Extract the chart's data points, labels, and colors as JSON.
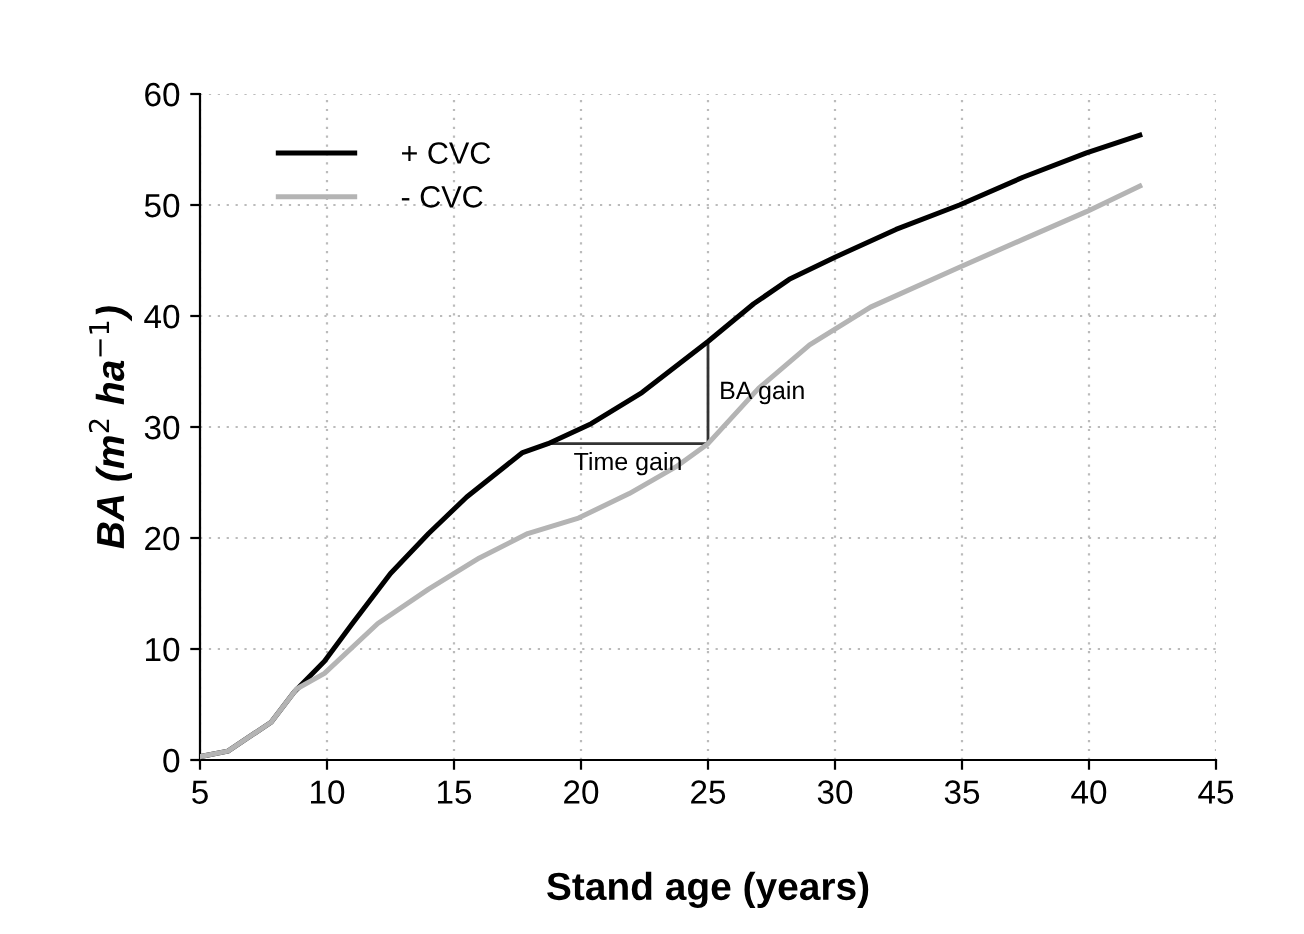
{
  "chart_data": {
    "type": "line",
    "xlabel": "Stand age (years)",
    "ylabel": "BA (m$^{2}$ ha$^{−1}$)",
    "xlim": [
      5,
      45
    ],
    "xticks": [
      5,
      10,
      15,
      20,
      25,
      30,
      35,
      40,
      45
    ],
    "ylim": [
      0,
      60
    ],
    "yticks": [
      0,
      10,
      20,
      30,
      40,
      50,
      60
    ],
    "grid": true,
    "legend": "top left",
    "line_style": "solid",
    "marker": "none",
    "series": [
      {
        "name": "+ CVC",
        "color": "#000000",
        "x": [
          5,
          6.1,
          7.8,
          8.7,
          9.9,
          11.0,
          12.5,
          14.0,
          15.5,
          17.7,
          18.7,
          20.4,
          22.4,
          25,
          26.8,
          28.2,
          30,
          32.4,
          34.9,
          37.4,
          39.9,
          42
        ],
        "values": [
          0.3,
          0.8,
          3.4,
          6.1,
          8.9,
          12.3,
          16.8,
          20.4,
          23.7,
          27.7,
          28.5,
          30.3,
          33.1,
          37.7,
          41.1,
          43.3,
          45.3,
          47.8,
          50.0,
          52.5,
          54.7,
          56.3
        ]
      },
      {
        "name": "- CVC",
        "color": "#b4b4b4",
        "x": [
          5,
          6.1,
          7.8,
          8.8,
          9.9,
          12.0,
          14.0,
          16.0,
          17.9,
          19.9,
          21.9,
          23.8,
          25,
          27,
          29,
          31.4,
          34.9,
          37.4,
          39.9,
          42
        ],
        "values": [
          0.3,
          0.8,
          3.4,
          6.4,
          7.8,
          12.3,
          15.4,
          18.2,
          20.4,
          21.8,
          24.0,
          26.5,
          28.5,
          33.5,
          37.4,
          40.8,
          44.4,
          46.9,
          49.4,
          51.7
        ]
      },
      {
        "color": "#333333",
        "x": [
          18.7,
          25,
          25
        ],
        "values": [
          28.5,
          28.5,
          37.7
        ]
      }
    ],
    "annotations": [
      "Time gain",
      "BA gain"
    ]
  }
}
